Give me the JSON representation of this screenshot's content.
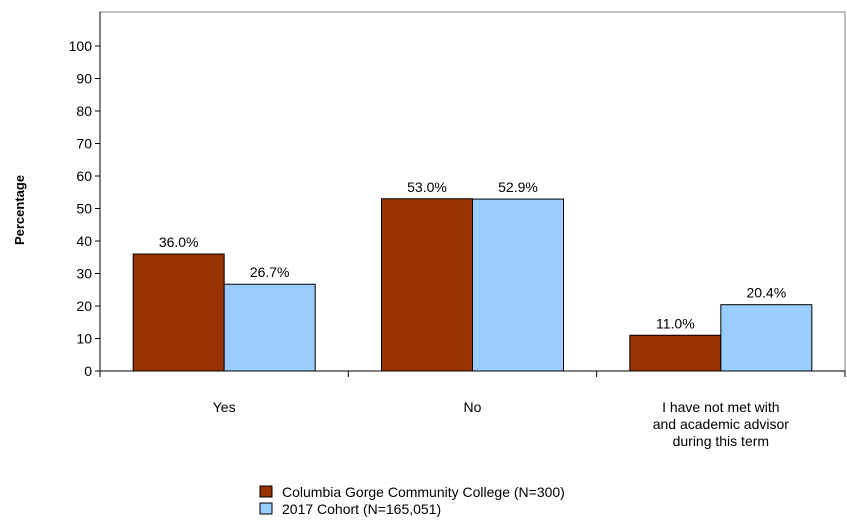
{
  "chart_data": {
    "type": "bar",
    "ylabel": "Percentage",
    "ylim": [
      0,
      100
    ],
    "yticks": [
      0,
      10,
      20,
      30,
      40,
      50,
      60,
      70,
      80,
      90,
      100
    ],
    "categories": [
      [
        "Yes"
      ],
      [
        "No"
      ],
      [
        "I have not met with",
        "and academic advisor",
        "during this term"
      ]
    ],
    "series": [
      {
        "name": "Columbia Gorge Community College (N=300)",
        "color": "#993300",
        "values": [
          36.0,
          53.0,
          11.0
        ],
        "labels": [
          "36.0%",
          "53.0%",
          "11.0%"
        ]
      },
      {
        "name": "2017 Cohort (N=165,051)",
        "color": "#99ccff",
        "values": [
          26.7,
          52.9,
          20.4
        ],
        "labels": [
          "26.7%",
          "52.9%",
          "20.4%"
        ]
      }
    ],
    "legend_position": "bottom-center",
    "grid": false
  }
}
